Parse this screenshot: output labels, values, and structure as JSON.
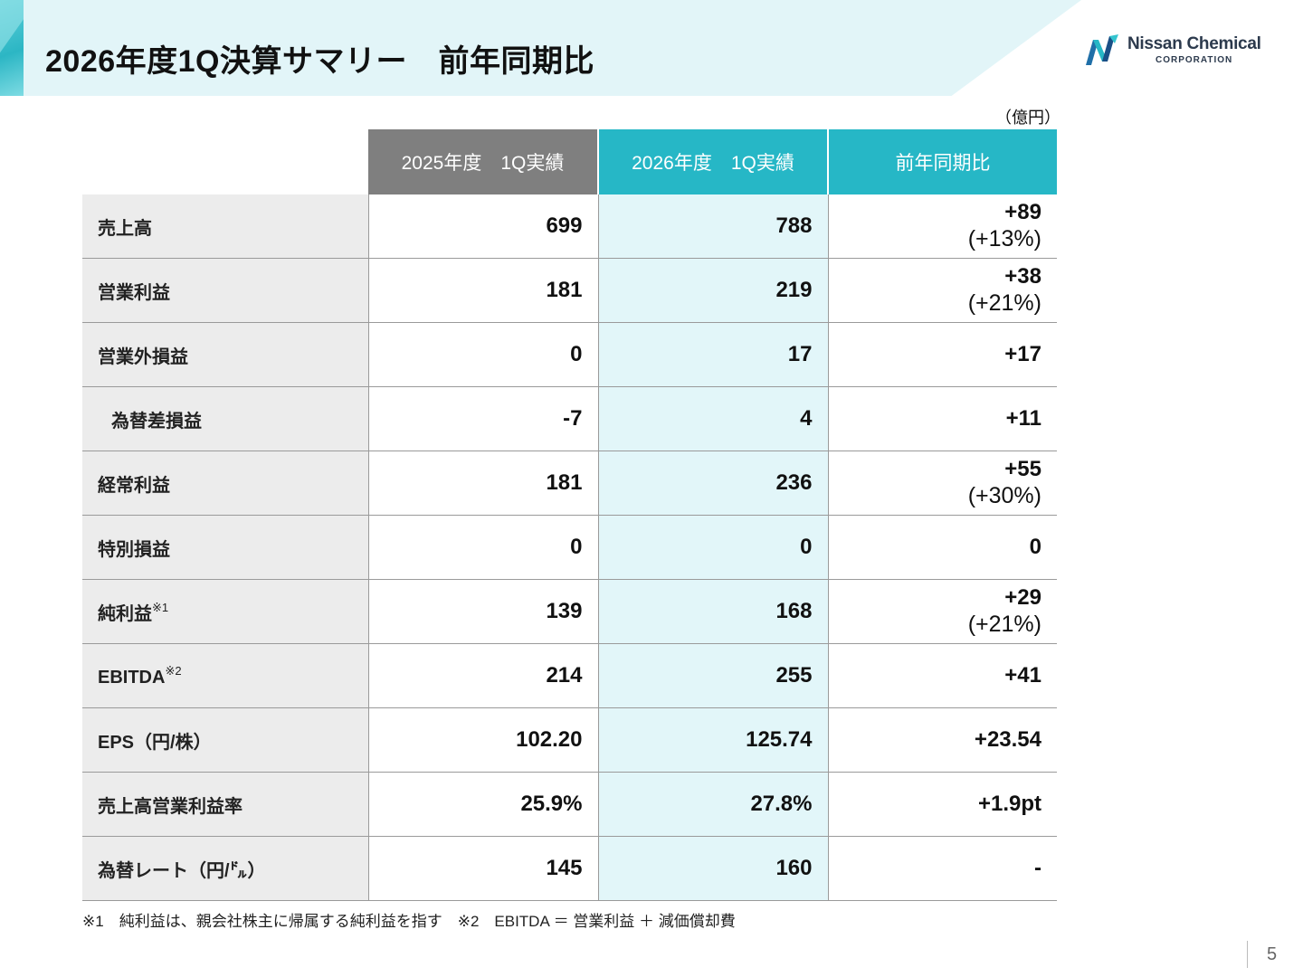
{
  "header": {
    "title": "2026年度1Q決算サマリー　前年同期比",
    "logo_name": "Nissan Chemical",
    "logo_sub": "CORPORATION"
  },
  "unit": "（億円）",
  "table": {
    "headers": [
      "2025年度　1Q実績",
      "2026年度　1Q実績",
      "前年同期比"
    ],
    "rows": [
      {
        "label": "売上高",
        "sup": "",
        "prev": "699",
        "curr": "788",
        "diff": "+89",
        "pct": "(+13%)"
      },
      {
        "label": "営業利益",
        "sup": "",
        "prev": "181",
        "curr": "219",
        "diff": "+38",
        "pct": "(+21%)"
      },
      {
        "label": "営業外損益",
        "sup": "",
        "prev": "0",
        "curr": "17",
        "diff": "+17",
        "pct": ""
      },
      {
        "label": "為替差損益",
        "sup": "",
        "prev": "-7",
        "curr": "4",
        "diff": "+11",
        "pct": ""
      },
      {
        "label": "経常利益",
        "sup": "",
        "prev": "181",
        "curr": "236",
        "diff": "+55",
        "pct": "(+30%)"
      },
      {
        "label": "特別損益",
        "sup": "",
        "prev": "0",
        "curr": "0",
        "diff": "0",
        "pct": ""
      },
      {
        "label": "純利益",
        "sup": "※1",
        "prev": "139",
        "curr": "168",
        "diff": "+29",
        "pct": "(+21%)"
      },
      {
        "label": "EBITDA",
        "sup": "※2",
        "prev": "214",
        "curr": "255",
        "diff": "+41",
        "pct": ""
      },
      {
        "label": "EPS（円/株）",
        "sup": "",
        "prev": "102.20",
        "curr": "125.74",
        "diff": "+23.54",
        "pct": ""
      },
      {
        "label": "売上高営業利益率",
        "sup": "",
        "prev": "25.9%",
        "curr": "27.8%",
        "diff": "+1.9pt",
        "pct": ""
      },
      {
        "label": "為替レート（円/㌦）",
        "sup": "",
        "prev": "145",
        "curr": "160",
        "diff": "-",
        "pct": ""
      }
    ]
  },
  "footnote": "※1　純利益は、親会社株主に帰属する純利益を指す　※2　EBITDA ＝ 営業利益 ＋ 減価償却費",
  "page_number": "5",
  "colors": {
    "accent": "#26b7c6",
    "header_gray": "#7f7f7f",
    "title_band": "#e2f5f8",
    "current_column": "#e2f6f9"
  }
}
